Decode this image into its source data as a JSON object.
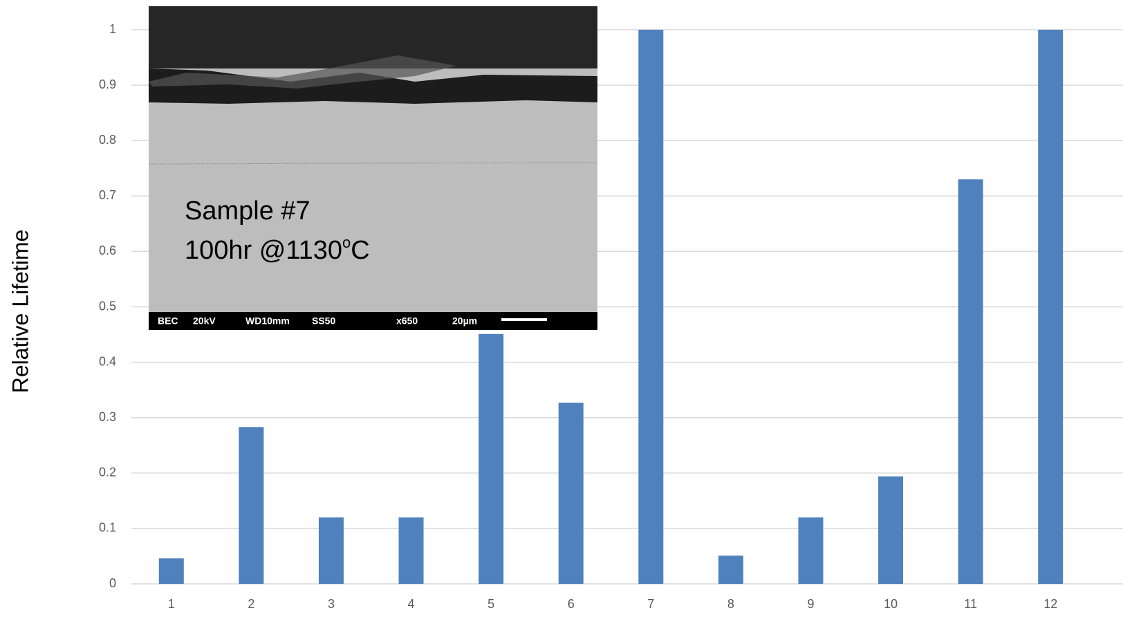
{
  "chart_data": {
    "type": "bar",
    "y_axis_label": "Relative Lifetime",
    "categories": [
      "1",
      "2",
      "3",
      "4",
      "5",
      "6",
      "7",
      "8",
      "9",
      "10",
      "11",
      "12"
    ],
    "values": [
      0.046,
      0.283,
      0.12,
      0.12,
      0.451,
      0.327,
      1,
      0.051,
      0.12,
      0.194,
      0.73,
      1
    ],
    "color": "#4f81bd",
    "ylim": [
      0,
      1
    ],
    "yticks": [
      0,
      0.1,
      0.2,
      0.3,
      0.4,
      0.5,
      0.6,
      0.7,
      0.8,
      0.9,
      1
    ],
    "grid": true,
    "inset": {
      "label_line1": "Sample #7",
      "label_line2": "100hr @1130",
      "label_superscript": "o",
      "label_unit": "C",
      "info": [
        "BEC",
        "20kV",
        "WD10mm",
        "SS50",
        "x650",
        "20µm"
      ]
    }
  }
}
